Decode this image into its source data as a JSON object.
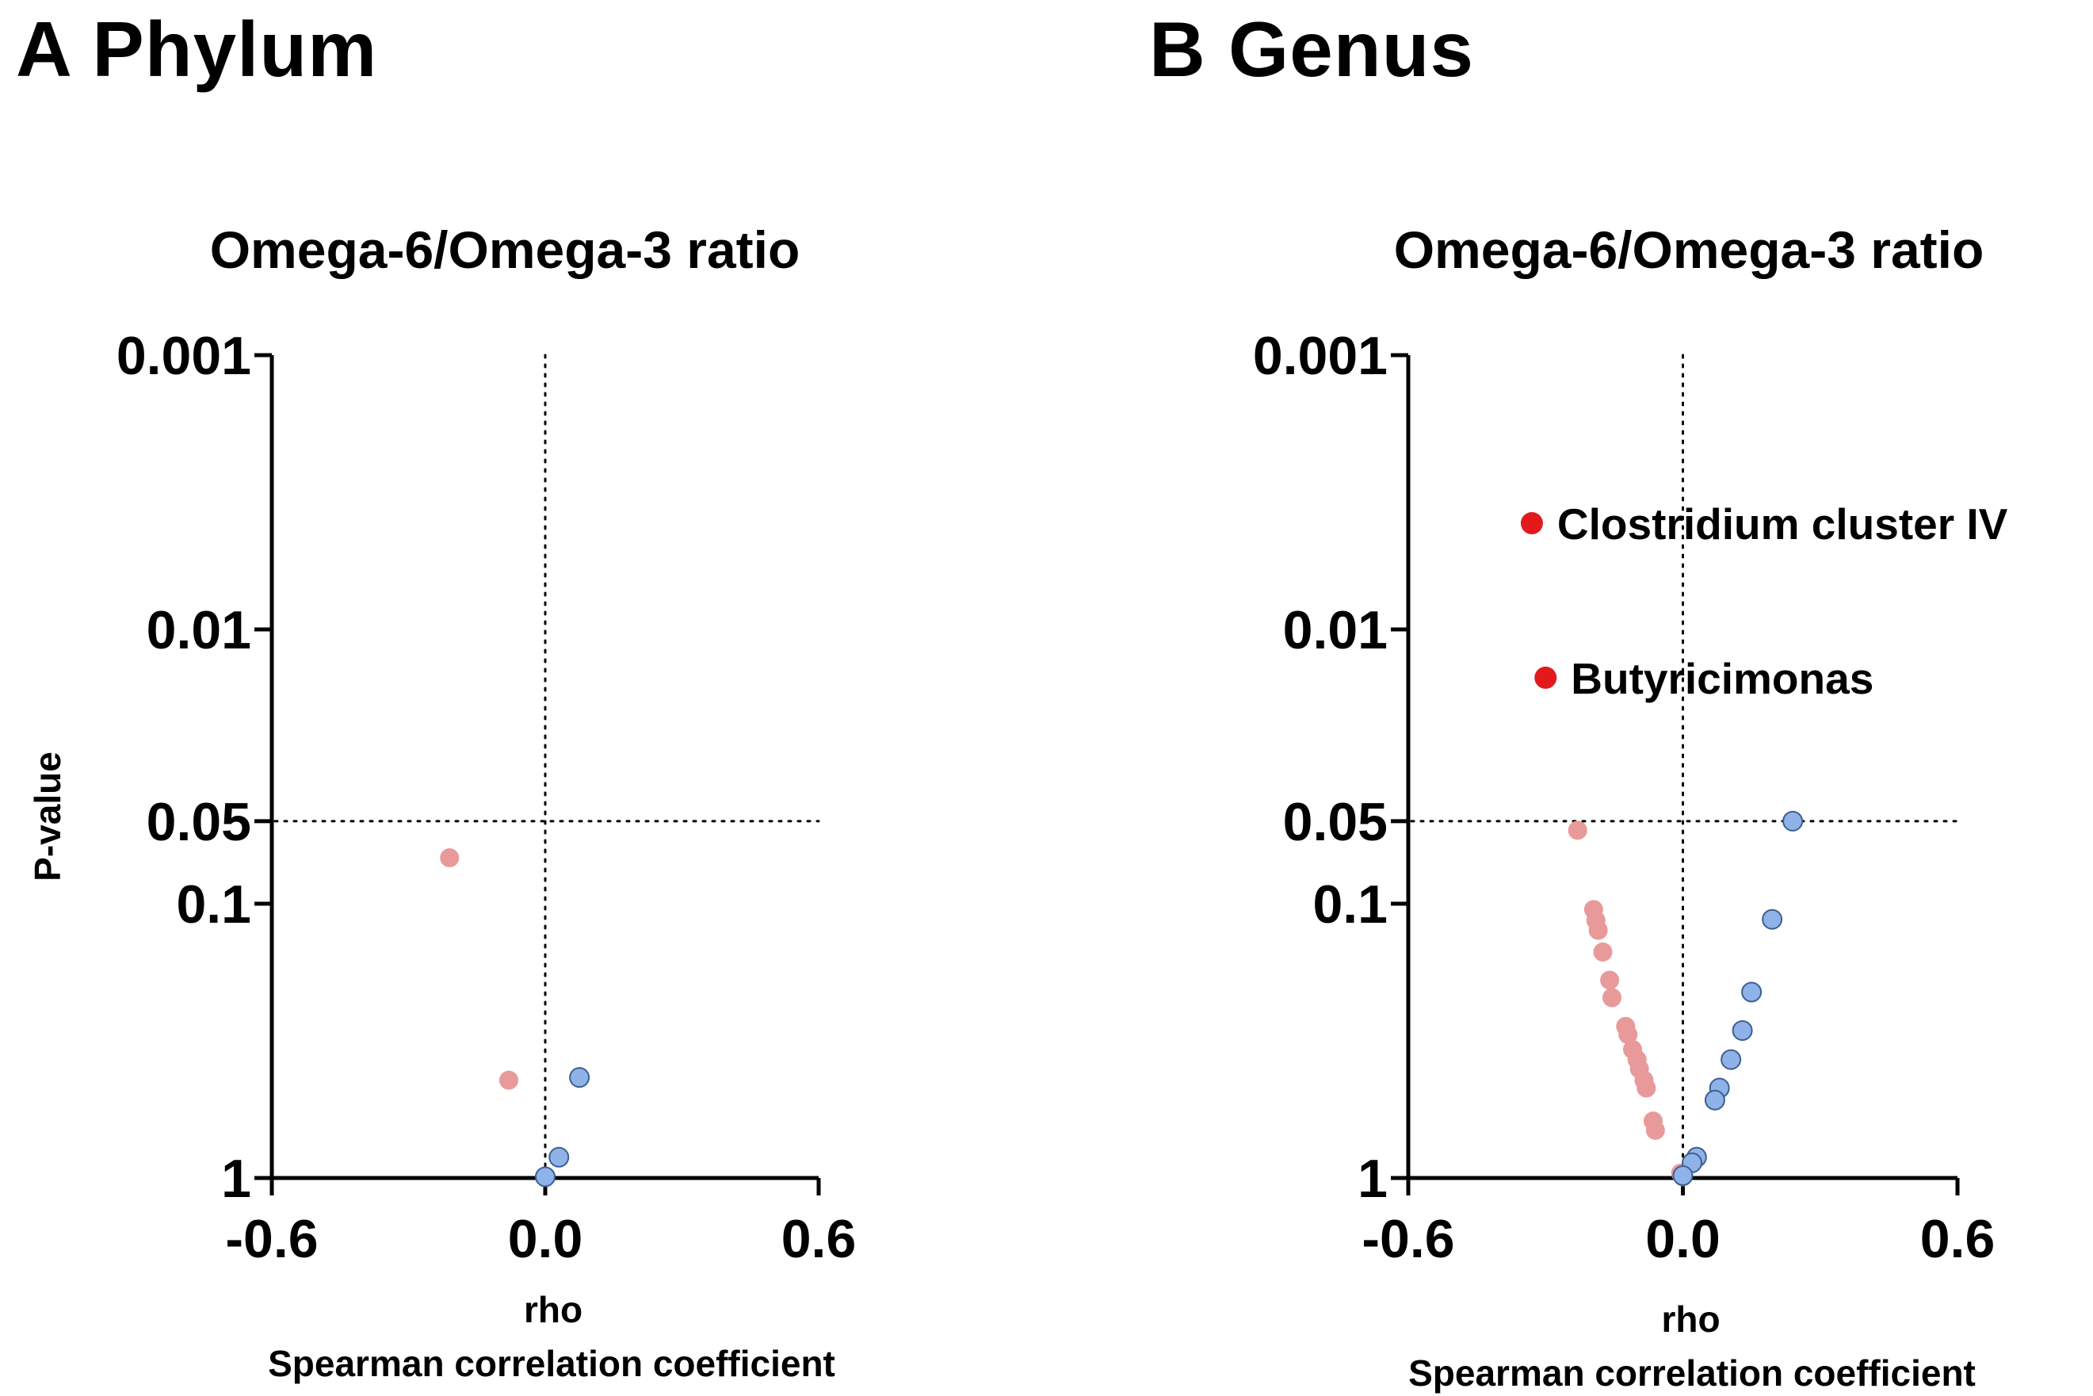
{
  "panels": {
    "a": {
      "heading": "A Phylum"
    },
    "b": {
      "heading": "B Genus"
    }
  },
  "colors": {
    "negative_point": "#e8999a",
    "positive_point": "#8fb3e8",
    "significant_point": "#e31a1c",
    "axis": "#000000"
  },
  "chart_data": [
    {
      "id": "phylum",
      "type": "scatter",
      "title": "Omega-6/Omega-3 ratio",
      "ylabel": "P-value",
      "xlabel": "rho",
      "xlabel2": "Spearman correlation coefficient",
      "xlim": [
        -0.6,
        0.6
      ],
      "xticks": [
        "-0.6",
        "0.0",
        "0.6"
      ],
      "yscale": "log-reversed",
      "ylim": [
        1,
        0.001
      ],
      "yticks": [
        {
          "value": 0.001,
          "label": "0.001"
        },
        {
          "value": 0.01,
          "label": "0.01"
        },
        {
          "value": 0.05,
          "label": "0.05"
        },
        {
          "value": 0.1,
          "label": "0.1"
        },
        {
          "value": 1,
          "label": "1"
        }
      ],
      "reference_lines": {
        "x": 0.0,
        "p": 0.05
      },
      "points": [
        {
          "rho": -0.21,
          "p": 0.068,
          "color": "negative_point"
        },
        {
          "rho": -0.08,
          "p": 0.44,
          "color": "negative_point"
        },
        {
          "rho": 0.075,
          "p": 0.43,
          "color": "positive_point"
        },
        {
          "rho": 0.03,
          "p": 0.84,
          "color": "positive_point"
        },
        {
          "rho": 0.0,
          "p": 0.99,
          "color": "positive_point"
        }
      ]
    },
    {
      "id": "genus",
      "type": "scatter",
      "title": "Omega-6/Omega-3 ratio",
      "ylabel": "",
      "xlabel": "rho",
      "xlabel2": "Spearman correlation coefficient",
      "xlim": [
        -0.6,
        0.6
      ],
      "xticks": [
        "-0.6",
        "0.0",
        "0.6"
      ],
      "yscale": "log-reversed",
      "ylim": [
        1,
        0.001
      ],
      "yticks": [
        {
          "value": 0.001,
          "label": "0.001"
        },
        {
          "value": 0.01,
          "label": "0.01"
        },
        {
          "value": 0.05,
          "label": "0.05"
        },
        {
          "value": 0.1,
          "label": "0.1"
        },
        {
          "value": 1,
          "label": "1"
        }
      ],
      "reference_lines": {
        "x": 0.0,
        "p": 0.05
      },
      "points": [
        {
          "rho": -0.33,
          "p": 0.0041,
          "color": "significant_point",
          "label": "Clostridium cluster IV"
        },
        {
          "rho": -0.3,
          "p": 0.015,
          "color": "significant_point",
          "label": "Butyricimonas"
        },
        {
          "rho": -0.23,
          "p": 0.054,
          "color": "negative_point"
        },
        {
          "rho": -0.195,
          "p": 0.105,
          "color": "negative_point"
        },
        {
          "rho": -0.19,
          "p": 0.115,
          "color": "negative_point"
        },
        {
          "rho": -0.185,
          "p": 0.125,
          "color": "negative_point"
        },
        {
          "rho": -0.175,
          "p": 0.15,
          "color": "negative_point"
        },
        {
          "rho": -0.16,
          "p": 0.19,
          "color": "negative_point"
        },
        {
          "rho": -0.155,
          "p": 0.22,
          "color": "negative_point"
        },
        {
          "rho": -0.125,
          "p": 0.28,
          "color": "negative_point"
        },
        {
          "rho": -0.12,
          "p": 0.3,
          "color": "negative_point"
        },
        {
          "rho": -0.11,
          "p": 0.34,
          "color": "negative_point"
        },
        {
          "rho": -0.1,
          "p": 0.37,
          "color": "negative_point"
        },
        {
          "rho": -0.095,
          "p": 0.4,
          "color": "negative_point"
        },
        {
          "rho": -0.085,
          "p": 0.44,
          "color": "negative_point"
        },
        {
          "rho": -0.08,
          "p": 0.47,
          "color": "negative_point"
        },
        {
          "rho": -0.065,
          "p": 0.62,
          "color": "negative_point"
        },
        {
          "rho": -0.06,
          "p": 0.67,
          "color": "negative_point"
        },
        {
          "rho": -0.005,
          "p": 0.96,
          "color": "negative_point"
        },
        {
          "rho": 0.0,
          "p": 0.99,
          "color": "negative_point"
        },
        {
          "rho": 0.24,
          "p": 0.05,
          "color": "positive_point"
        },
        {
          "rho": 0.195,
          "p": 0.114,
          "color": "positive_point"
        },
        {
          "rho": 0.15,
          "p": 0.21,
          "color": "positive_point"
        },
        {
          "rho": 0.13,
          "p": 0.29,
          "color": "positive_point"
        },
        {
          "rho": 0.105,
          "p": 0.37,
          "color": "positive_point"
        },
        {
          "rho": 0.08,
          "p": 0.47,
          "color": "positive_point"
        },
        {
          "rho": 0.07,
          "p": 0.52,
          "color": "positive_point"
        },
        {
          "rho": 0.03,
          "p": 0.84,
          "color": "positive_point"
        },
        {
          "rho": 0.02,
          "p": 0.88,
          "color": "positive_point"
        },
        {
          "rho": 0.0,
          "p": 0.98,
          "color": "positive_point"
        }
      ]
    }
  ]
}
